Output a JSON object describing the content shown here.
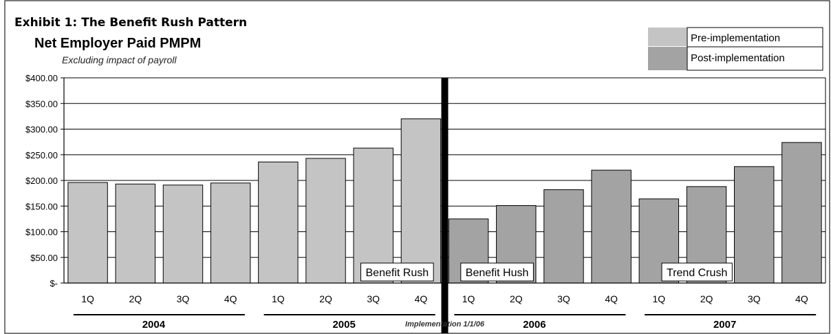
{
  "exhibit_label": "Exhibit 1: The Benefit Rush Pattern",
  "chart_data": {
    "type": "bar",
    "title": "Net Employer Paid PMPM",
    "subtitle": "Excluding impact of payroll",
    "xlabel": "",
    "ylabel": "",
    "ylim": [
      0,
      400
    ],
    "yticks": [
      0,
      50,
      100,
      150,
      200,
      250,
      300,
      350,
      400
    ],
    "ytick_labels": [
      "$-",
      "$50.00",
      "$100.00",
      "$150.00",
      "$200.00",
      "$250.00",
      "$300.00",
      "$350.00",
      "$400.00"
    ],
    "grid": true,
    "legend_position": "top-right",
    "categories": [
      "1Q",
      "2Q",
      "3Q",
      "4Q",
      "1Q",
      "2Q",
      "3Q",
      "4Q",
      "1Q",
      "2Q",
      "3Q",
      "4Q",
      "1Q",
      "2Q",
      "3Q",
      "4Q"
    ],
    "year_groups": [
      {
        "label": "2004",
        "start": 0,
        "end": 3
      },
      {
        "label": "2005",
        "start": 4,
        "end": 7
      },
      {
        "label": "2006",
        "start": 8,
        "end": 11
      },
      {
        "label": "2007",
        "start": 12,
        "end": 15
      }
    ],
    "series": [
      {
        "name": "Pre-implementation",
        "color": "#c4c4c4",
        "values": [
          196,
          193,
          191,
          195,
          236,
          243,
          263,
          320,
          null,
          null,
          null,
          null,
          null,
          null,
          null,
          null
        ]
      },
      {
        "name": "Post-implementation",
        "color": "#a3a3a3",
        "values": [
          null,
          null,
          null,
          null,
          null,
          null,
          null,
          null,
          125,
          151,
          182,
          220,
          164,
          188,
          227,
          274
        ]
      }
    ],
    "implementation_marker": {
      "after_index": 7,
      "label": "Implementation 1/1/06"
    },
    "annotations": [
      {
        "text": "Benefit Rush",
        "at_index": 6.5
      },
      {
        "text": "Benefit Hush",
        "at_index": 8.6
      },
      {
        "text": "Trend Crush",
        "at_index": 12.8
      }
    ]
  }
}
